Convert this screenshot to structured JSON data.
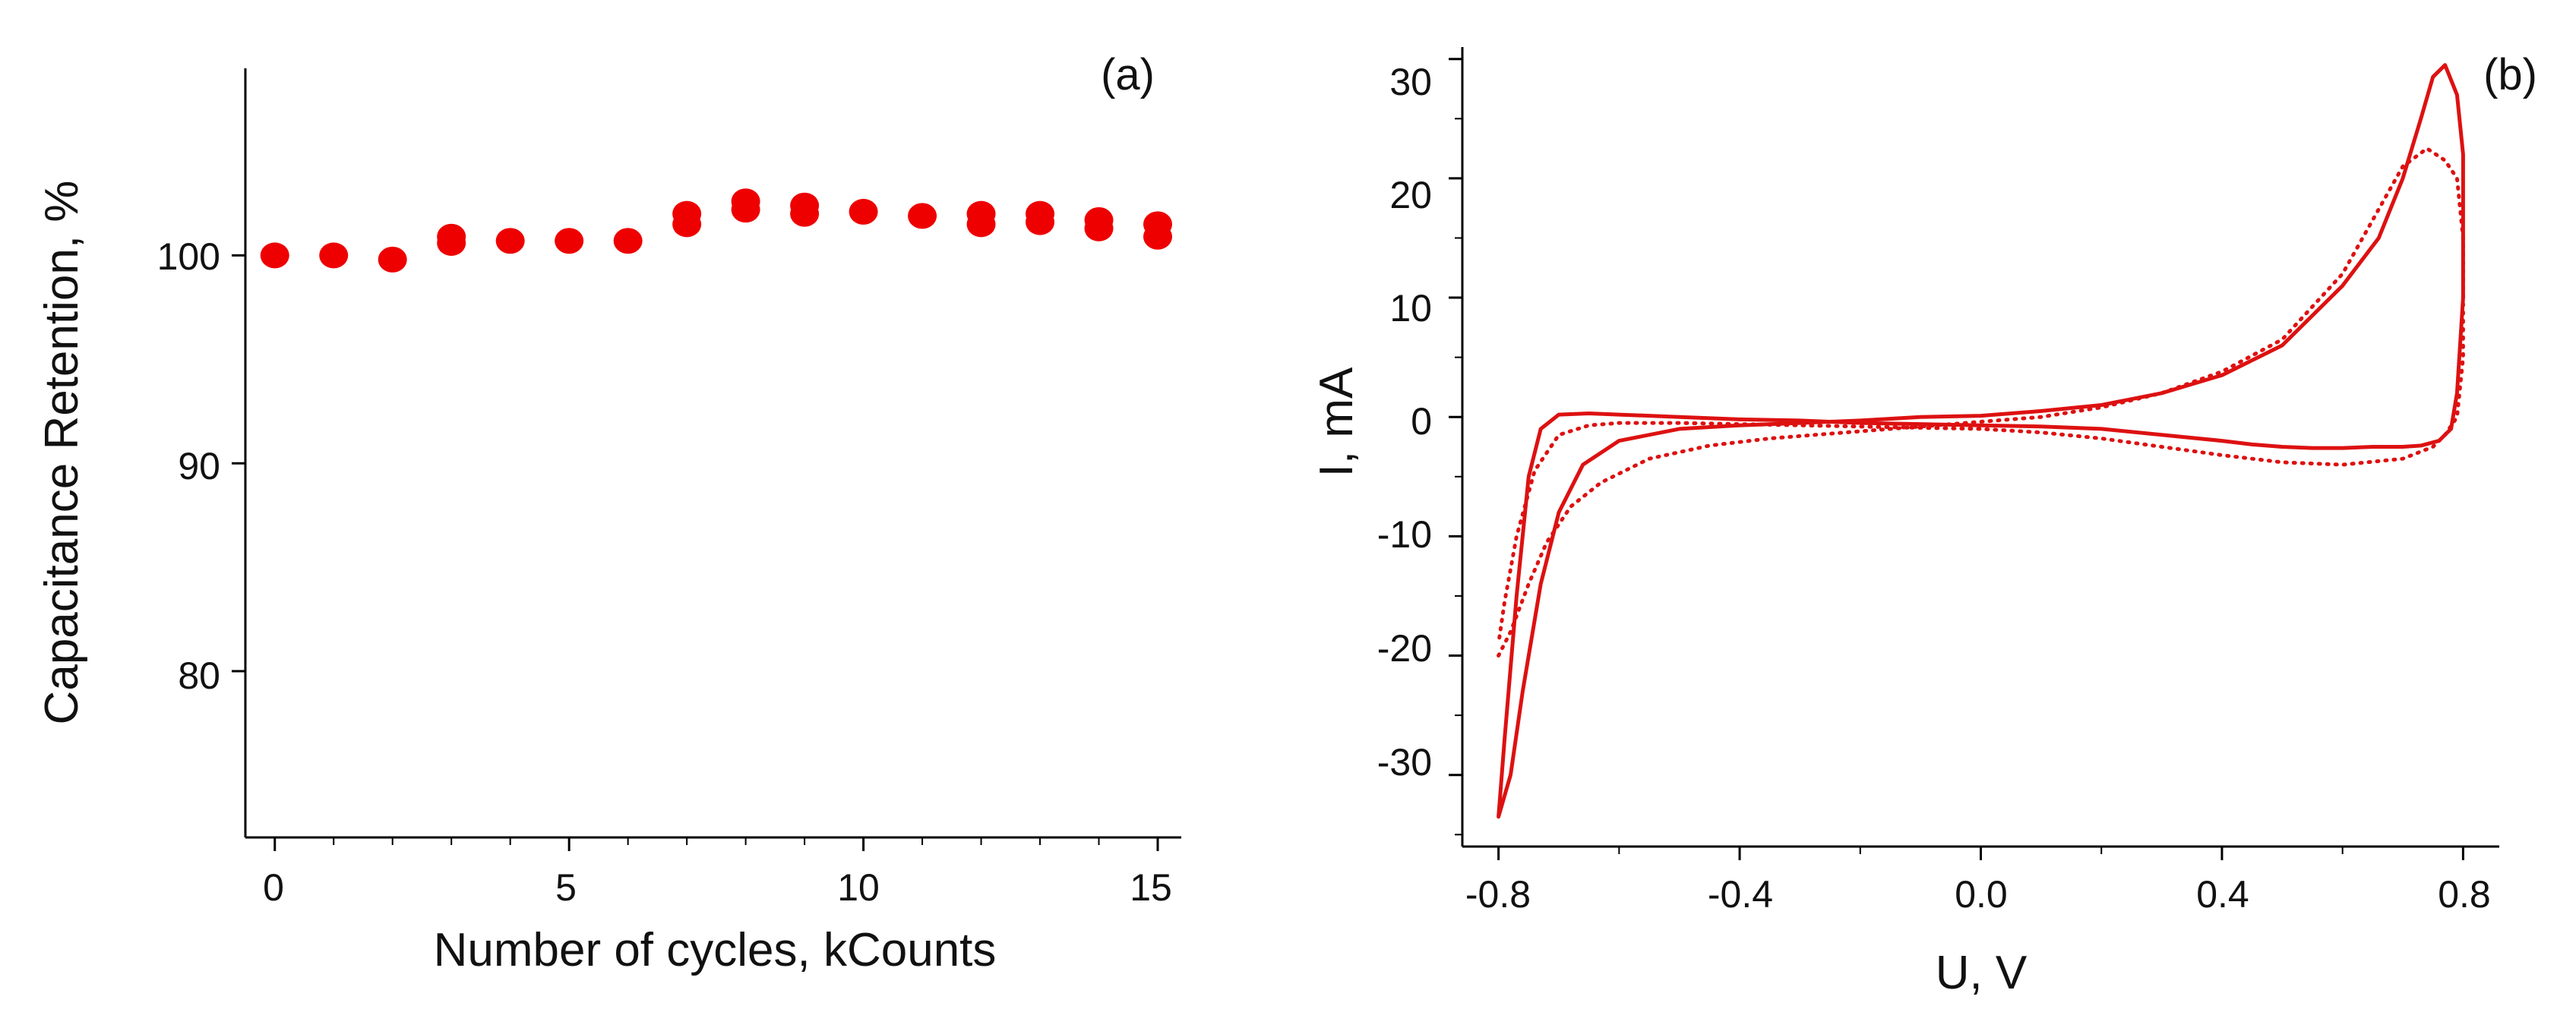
{
  "chart_data": [
    {
      "type": "scatter",
      "panel_label": "(a)",
      "xlabel": "Number of cycles, kCounts",
      "ylabel": "Capacitance Retention, %",
      "xlim": [
        -0.5,
        15.4
      ],
      "ylim": [
        72,
        109
      ],
      "xticks": [
        0,
        5,
        10,
        15
      ],
      "xtick_labels": [
        "0",
        "5",
        "10",
        "15"
      ],
      "yticks": [
        80,
        90,
        100
      ],
      "ytick_labels": [
        "80",
        "90",
        "100"
      ],
      "x_minor_ticks": [
        1,
        2,
        3,
        4,
        6,
        7,
        8,
        9,
        11,
        12,
        13,
        14
      ],
      "marker_color": "#ee0000",
      "series": [
        {
          "name": "retention",
          "x": [
            0,
            1,
            2,
            3,
            3,
            4,
            5,
            6,
            7,
            7,
            8,
            8,
            9,
            9,
            10,
            11,
            12,
            12,
            13,
            13,
            14,
            14,
            15,
            15
          ],
          "y": [
            100.0,
            100.0,
            99.8,
            100.9,
            100.6,
            100.7,
            100.7,
            100.7,
            102.0,
            101.5,
            102.6,
            102.2,
            102.4,
            102.0,
            102.1,
            101.9,
            102.0,
            101.5,
            102.0,
            101.6,
            101.7,
            101.3,
            101.5,
            100.9
          ]
        }
      ]
    },
    {
      "type": "line",
      "panel_label": "(b)",
      "xlabel": "U, V",
      "ylabel": "I, mA",
      "xlim": [
        -0.86,
        0.86
      ],
      "ylim": [
        -36,
        31
      ],
      "xticks": [
        -0.8,
        -0.4,
        0.0,
        0.4,
        0.8
      ],
      "xtick_labels": [
        "-0.8",
        "-0.4",
        "0.0",
        "0.4",
        "0.8"
      ],
      "yticks": [
        -30,
        -20,
        -10,
        0,
        10,
        20,
        30
      ],
      "ytick_labels": [
        "-30",
        "-20",
        "-10",
        "0",
        "10",
        "20",
        "30"
      ],
      "x_minor_ticks": [
        -0.6,
        -0.2,
        0.2,
        0.6
      ],
      "y_minor_ticks": [
        -35,
        -25,
        -15,
        -5,
        5,
        15,
        25
      ],
      "line_color": "#dd1111",
      "series": [
        {
          "name": "solid",
          "style": "solid",
          "x": [
            -0.8,
            -0.78,
            -0.76,
            -0.73,
            -0.7,
            -0.66,
            -0.6,
            -0.5,
            -0.4,
            -0.3,
            -0.2,
            -0.1,
            0.0,
            0.1,
            0.2,
            0.3,
            0.4,
            0.5,
            0.6,
            0.66,
            0.7,
            0.73,
            0.75,
            0.77,
            0.79,
            0.8,
            0.8,
            0.79,
            0.78,
            0.76,
            0.73,
            0.7,
            0.65,
            0.6,
            0.55,
            0.5,
            0.45,
            0.4,
            0.3,
            0.2,
            0.1,
            0.0,
            -0.1,
            -0.2,
            -0.3,
            -0.4,
            -0.5,
            -0.6,
            -0.65,
            -0.7,
            -0.73,
            -0.75,
            -0.77,
            -0.79,
            -0.8
          ],
          "y": [
            -33.5,
            -30.0,
            -23.0,
            -14.0,
            -8.0,
            -4.0,
            -2.0,
            -1.0,
            -0.7,
            -0.5,
            -0.3,
            0.0,
            0.1,
            0.5,
            1.0,
            2.0,
            3.5,
            6.0,
            11.0,
            15.0,
            20.0,
            25.0,
            28.5,
            29.5,
            27.0,
            22.0,
            10.0,
            2.0,
            -1.0,
            -2.0,
            -2.4,
            -2.5,
            -2.5,
            -2.6,
            -2.6,
            -2.5,
            -2.3,
            -2.0,
            -1.5,
            -1.0,
            -0.8,
            -0.7,
            -0.6,
            -0.5,
            -0.3,
            -0.2,
            0.0,
            0.2,
            0.3,
            0.2,
            -1.0,
            -5.0,
            -15.0,
            -27.0,
            -33.5
          ]
        },
        {
          "name": "dotted",
          "style": "dotted",
          "x": [
            -0.8,
            -0.78,
            -0.75,
            -0.72,
            -0.68,
            -0.63,
            -0.55,
            -0.45,
            -0.35,
            -0.25,
            -0.1,
            0.0,
            0.1,
            0.2,
            0.3,
            0.4,
            0.5,
            0.6,
            0.65,
            0.7,
            0.74,
            0.77,
            0.79,
            0.8,
            0.8,
            0.79,
            0.77,
            0.75,
            0.7,
            0.6,
            0.5,
            0.4,
            0.3,
            0.2,
            0.1,
            0.0,
            -0.1,
            -0.2,
            -0.3,
            -0.4,
            -0.5,
            -0.6,
            -0.65,
            -0.7,
            -0.74,
            -0.77,
            -0.79,
            -0.8
          ],
          "y": [
            -20.0,
            -18.0,
            -14.0,
            -10.5,
            -7.5,
            -5.5,
            -3.5,
            -2.4,
            -1.8,
            -1.4,
            -0.8,
            -0.4,
            0.0,
            0.8,
            2.0,
            3.8,
            6.5,
            12.0,
            16.5,
            21.0,
            22.5,
            21.5,
            20.0,
            15.0,
            5.0,
            0.0,
            -1.5,
            -2.5,
            -3.5,
            -4.0,
            -3.8,
            -3.2,
            -2.5,
            -1.8,
            -1.3,
            -1.0,
            -0.9,
            -0.8,
            -0.7,
            -0.6,
            -0.5,
            -0.5,
            -0.7,
            -1.5,
            -4.5,
            -10.0,
            -15.5,
            -19.0
          ]
        }
      ]
    }
  ]
}
